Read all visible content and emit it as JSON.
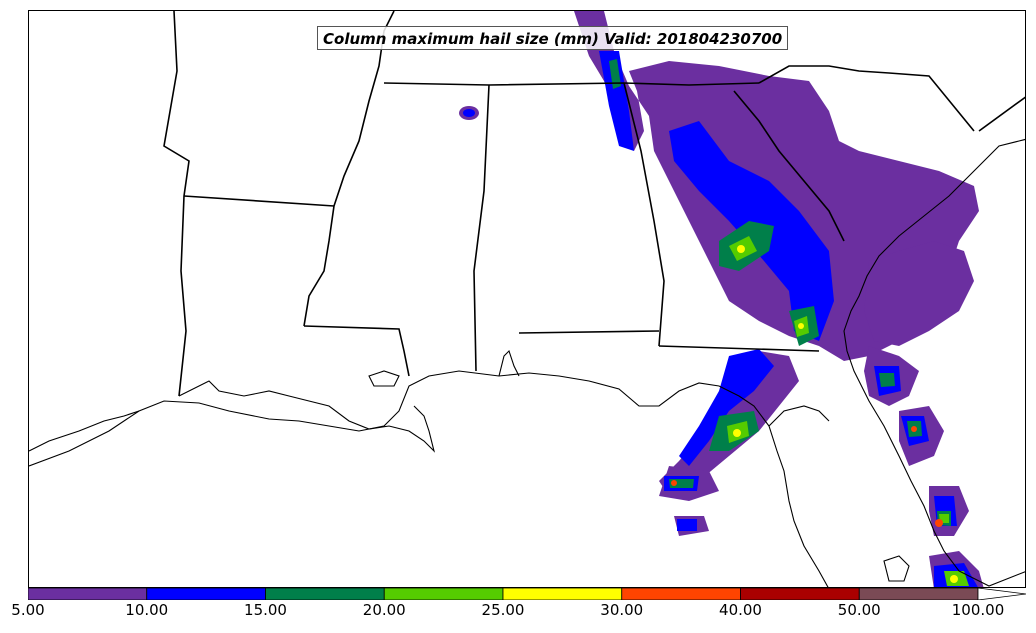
{
  "map": {
    "title": "Column maximum hail size (mm) Valid: 201804230700",
    "region": "Southeastern United States",
    "borders": [
      "state-borders",
      "coastline"
    ]
  },
  "legend": {
    "bins": [
      {
        "from": 5,
        "to": 10,
        "color": "#6b2fa0"
      },
      {
        "from": 10,
        "to": 15,
        "color": "#0000ff"
      },
      {
        "from": 15,
        "to": 20,
        "color": "#007f4a"
      },
      {
        "from": 20,
        "to": 25,
        "color": "#55cc00"
      },
      {
        "from": 25,
        "to": 30,
        "color": "#ffff00"
      },
      {
        "from": 30,
        "to": 40,
        "color": "#ff4400"
      },
      {
        "from": 40,
        "to": 50,
        "color": "#aa0000"
      },
      {
        "from": 50,
        "to": 100,
        "color": "#7a4a55"
      }
    ],
    "tick_labels": [
      "5.00",
      "10.00",
      "15.00",
      "20.00",
      "25.00",
      "30.00",
      "40.00",
      "50.00",
      "100.00"
    ],
    "extend": "max"
  }
}
